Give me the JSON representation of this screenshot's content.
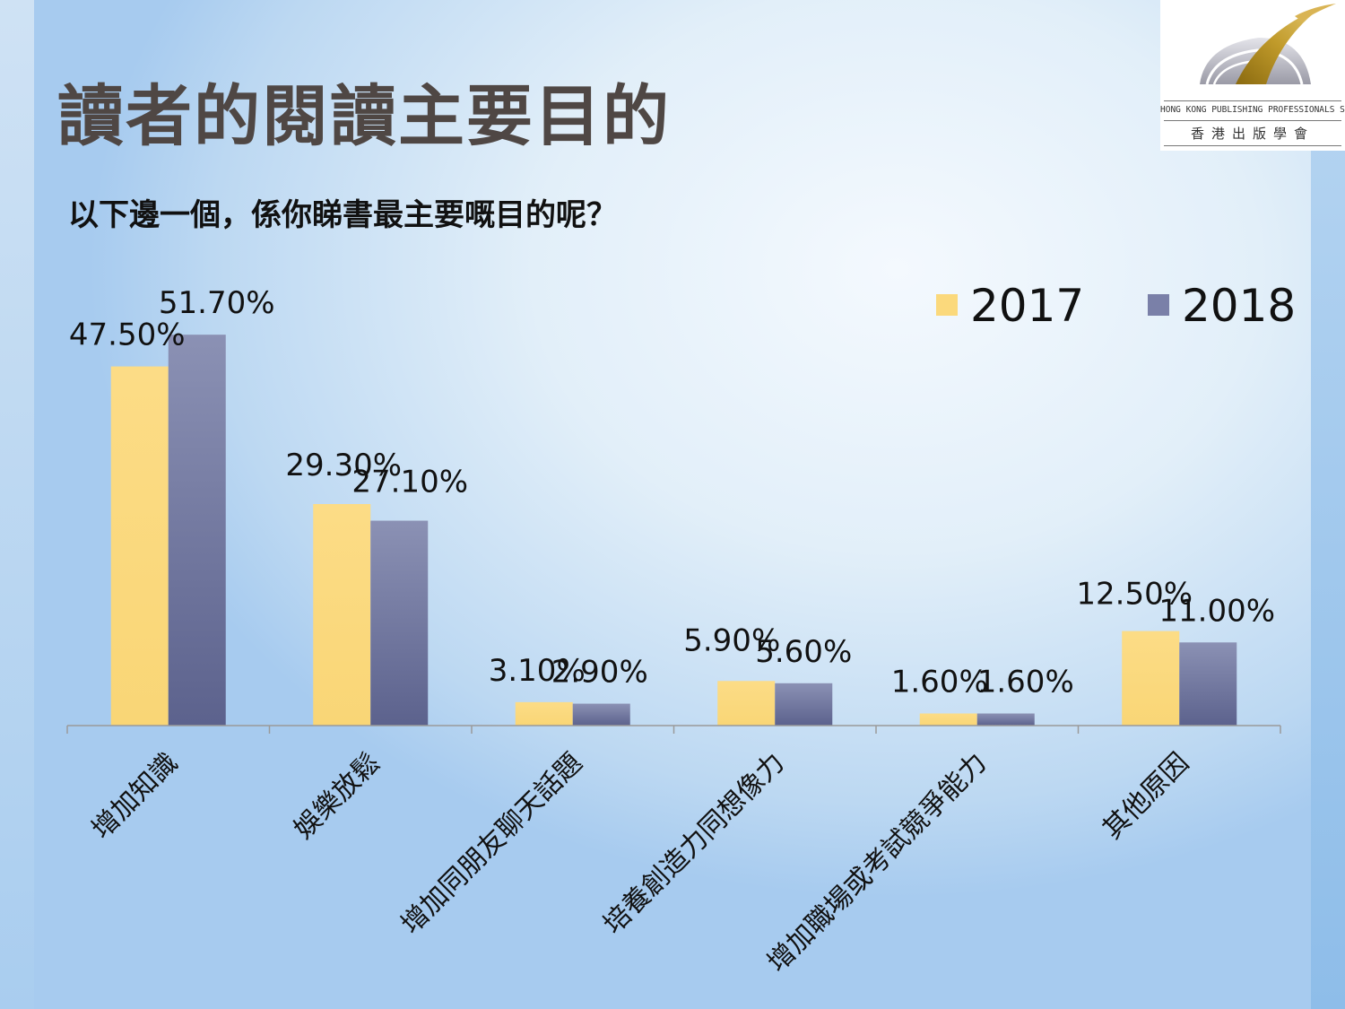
{
  "slide": {
    "title": "讀者的閱讀主要目的",
    "subtitle": "以下邊一個，係你睇書最主要嘅目的呢？"
  },
  "logo": {
    "name_en": "HONG KONG PUBLISHING PROFESSIONALS SOCIETY",
    "name_zh": "香港出版學會"
  },
  "colors": {
    "series_2017": "#fbd97c",
    "series_2018": "#7a80a8",
    "title": "#4f4744"
  },
  "chart_data": {
    "type": "bar",
    "categories": [
      "增加知識",
      "娛樂放鬆",
      "增加同朋友聊天話題",
      "培養創造力同想像力",
      "增加職場或考試競爭能力",
      "其他原因"
    ],
    "series": [
      {
        "name": "2017",
        "values": [
          47.5,
          29.3,
          3.1,
          5.9,
          1.6,
          12.5
        ],
        "labels": [
          "47.50%",
          "29.30%",
          "3.10%",
          "5.90%",
          "1.60%",
          "12.50%"
        ]
      },
      {
        "name": "2018",
        "values": [
          51.7,
          27.1,
          2.9,
          5.6,
          1.6,
          11.0
        ],
        "labels": [
          "51.70%",
          "27.10%",
          "2.90%",
          "5.60%",
          "1.60%",
          "11.00%"
        ]
      }
    ],
    "ylim": [
      0,
      60
    ],
    "legend": "top-right",
    "grid": false
  }
}
